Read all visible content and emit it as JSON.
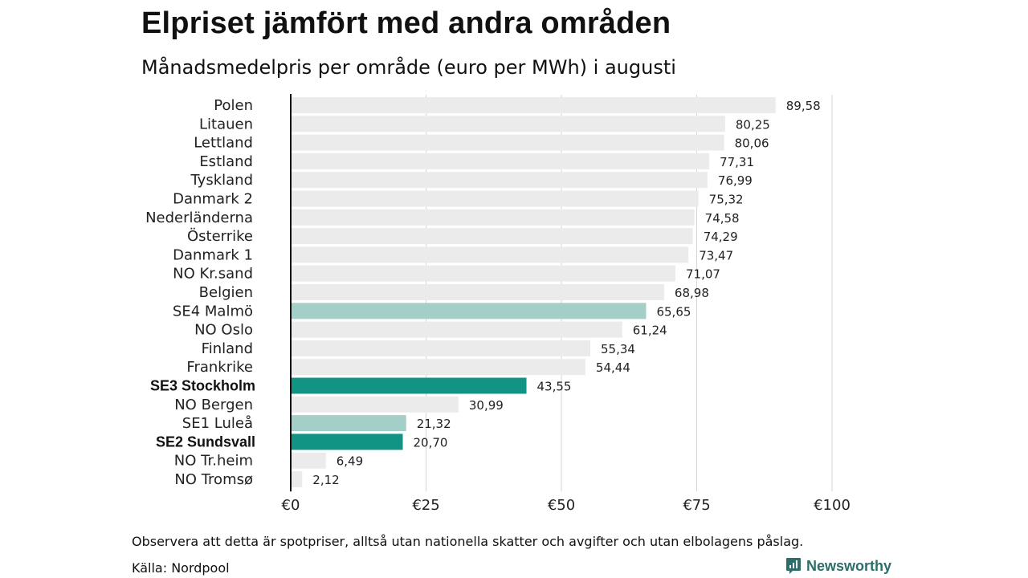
{
  "brand": {
    "name": "Newsworthy",
    "icon": "newsworthy-logo-icon"
  },
  "footer": {
    "note": "Observera att detta är spotpriser, alltså utan nationella skatter och avgifter och utan elbolagens påslag.",
    "source": "Källa: Nordpool"
  },
  "colors": {
    "default_bar": "#ebebeb",
    "highlight_light": "#a3cfc8",
    "highlight_dark": "#129484",
    "axis": "#111111",
    "grid": "#d6d6d6"
  },
  "chart_data": {
    "type": "bar",
    "orientation": "horizontal",
    "title": "Elpriset jämfört med andra områden",
    "subtitle": "Månadsmedelpris per område (euro per MWh) i augusti",
    "categories": [
      "Polen",
      "Litauen",
      "Lettland",
      "Estland",
      "Tyskland",
      "Danmark 2",
      "Nederländerna",
      "Österrike",
      "Danmark 1",
      "NO Kr.sand",
      "Belgien",
      "SE4 Malmö",
      "NO Oslo",
      "Finland",
      "Frankrike",
      "SE3 Stockholm",
      "NO Bergen",
      "SE1 Luleå",
      "SE2 Sundsvall",
      "NO Tr.heim",
      "NO Tromsø"
    ],
    "values": [
      89.58,
      80.25,
      80.06,
      77.31,
      76.99,
      75.32,
      74.58,
      74.29,
      73.47,
      71.07,
      68.98,
      65.65,
      61.24,
      55.34,
      54.44,
      43.55,
      30.99,
      21.32,
      20.7,
      6.49,
      2.12
    ],
    "value_labels": [
      "89,58",
      "80,25",
      "80,06",
      "77,31",
      "76,99",
      "75,32",
      "74,58",
      "74,29",
      "73,47",
      "71,07",
      "68,98",
      "65,65",
      "61,24",
      "55,34",
      "54,44",
      "43,55",
      "30,99",
      "21,32",
      "20,70",
      "6,49",
      "2,12"
    ],
    "highlight": [
      "none",
      "none",
      "none",
      "none",
      "none",
      "none",
      "none",
      "none",
      "none",
      "none",
      "none",
      "light",
      "none",
      "none",
      "none",
      "dark",
      "none",
      "light",
      "dark",
      "none",
      "none"
    ],
    "xticks": [
      0,
      25,
      50,
      75,
      100
    ],
    "xtick_labels": [
      "€0",
      "€25",
      "€50",
      "€75",
      "€100"
    ],
    "xlim": [
      0,
      100
    ],
    "grid": true,
    "legend": false
  }
}
